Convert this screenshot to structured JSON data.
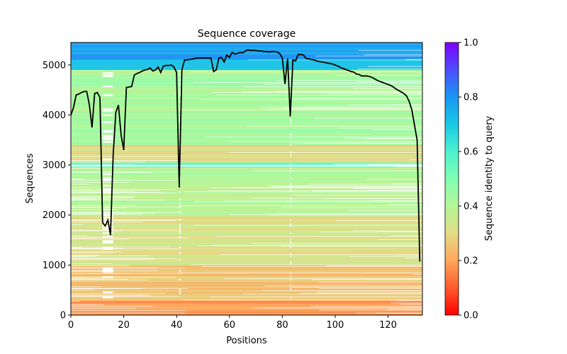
{
  "chart_data": {
    "type": "heatmap",
    "title": "Sequence coverage",
    "xlabel": "Positions",
    "ylabel": "Sequences",
    "xlim": [
      0,
      133
    ],
    "ylim": [
      0,
      5450
    ],
    "xticks": [
      0,
      20,
      40,
      60,
      80,
      100,
      120
    ],
    "yticks": [
      0,
      1000,
      2000,
      3000,
      4000,
      5000
    ],
    "grid": false,
    "legend": "none",
    "colorbar": {
      "label": "Sequence identity to query",
      "range": [
        0,
        1
      ],
      "ticks": [
        "0.0",
        "0.2",
        "0.4",
        "0.6",
        "0.8",
        "1.0"
      ],
      "colormap": "rainbow_r"
    },
    "identity_bands": [
      {
        "from": 0,
        "to": 300,
        "identity": 0.18
      },
      {
        "from": 300,
        "to": 1000,
        "identity": 0.25
      },
      {
        "from": 1000,
        "to": 2000,
        "identity": 0.32
      },
      {
        "from": 2000,
        "to": 2950,
        "identity": 0.4
      },
      {
        "from": 2950,
        "to": 3050,
        "identity": 0.55
      },
      {
        "from": 3050,
        "to": 3400,
        "identity": 0.3
      },
      {
        "from": 3400,
        "to": 4900,
        "identity": 0.42
      },
      {
        "from": 4900,
        "to": 5100,
        "identity": 0.7
      },
      {
        "from": 5100,
        "to": 5450,
        "identity": 0.78
      }
    ],
    "coverage_series": {
      "color": "#000000",
      "x": [
        0,
        1,
        2,
        3,
        4,
        5,
        6,
        7,
        8,
        9,
        10,
        11,
        12,
        13,
        14,
        15,
        16,
        17,
        18,
        19,
        20,
        21,
        22,
        23,
        24,
        25,
        26,
        27,
        28,
        29,
        30,
        31,
        32,
        33,
        34,
        35,
        36,
        37,
        38,
        39,
        40,
        41,
        42,
        43,
        44,
        45,
        46,
        47,
        48,
        49,
        50,
        51,
        52,
        53,
        54,
        55,
        56,
        57,
        58,
        59,
        60,
        61,
        62,
        63,
        64,
        65,
        66,
        67,
        68,
        69,
        70,
        71,
        72,
        73,
        74,
        75,
        76,
        77,
        78,
        79,
        80,
        81,
        82,
        83,
        84,
        85,
        86,
        87,
        88,
        89,
        90,
        91,
        92,
        93,
        94,
        95,
        96,
        97,
        98,
        99,
        100,
        101,
        102,
        103,
        104,
        105,
        106,
        107,
        108,
        109,
        110,
        111,
        112,
        113,
        114,
        115,
        116,
        117,
        118,
        119,
        120,
        121,
        122,
        123,
        124,
        125,
        126,
        127,
        128,
        129,
        130,
        131,
        132
      ],
      "y": [
        4000,
        4150,
        4400,
        4420,
        4450,
        4470,
        4470,
        4200,
        3750,
        4430,
        4450,
        4350,
        1850,
        1780,
        1900,
        1600,
        3200,
        4050,
        4200,
        3600,
        3300,
        4550,
        4560,
        4570,
        4800,
        4830,
        4850,
        4880,
        4900,
        4910,
        4940,
        4880,
        4900,
        4960,
        4850,
        4980,
        4990,
        4990,
        5000,
        4960,
        4850,
        2550,
        4900,
        5100,
        5100,
        5110,
        5120,
        5130,
        5140,
        5140,
        5140,
        5140,
        5140,
        5140,
        4870,
        4900,
        5140,
        5150,
        5060,
        5200,
        5150,
        5250,
        5220,
        5230,
        5250,
        5240,
        5280,
        5300,
        5290,
        5290,
        5290,
        5280,
        5280,
        5270,
        5270,
        5260,
        5270,
        5270,
        5260,
        5230,
        5140,
        4620,
        5130,
        3970,
        5100,
        5080,
        5210,
        5210,
        5200,
        5130,
        5120,
        5110,
        5100,
        5080,
        5070,
        5060,
        5050,
        5040,
        5030,
        5020,
        5000,
        4980,
        4950,
        4930,
        4910,
        4890,
        4870,
        4860,
        4820,
        4810,
        4780,
        4780,
        4780,
        4770,
        4750,
        4720,
        4690,
        4670,
        4650,
        4630,
        4610,
        4590,
        4560,
        4520,
        4490,
        4460,
        4430,
        4380,
        4270,
        4100,
        3800,
        3500,
        1070
      ]
    }
  }
}
